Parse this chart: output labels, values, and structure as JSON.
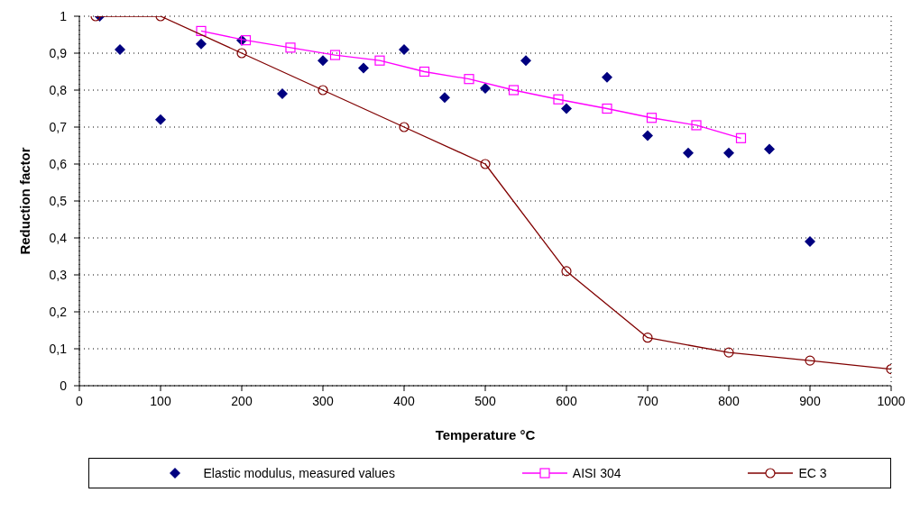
{
  "chart_data": {
    "type": "line",
    "xlabel": "Temperature °C",
    "ylabel": "Reduction factor",
    "xlim": [
      0,
      1000
    ],
    "xticks": [
      0,
      100,
      200,
      300,
      400,
      500,
      600,
      700,
      800,
      900,
      1000
    ],
    "ylim": [
      0,
      1
    ],
    "yticks": [
      {
        "value": 0,
        "label": "0"
      },
      {
        "value": 0.1,
        "label": "0,1"
      },
      {
        "value": 0.2,
        "label": "0,2"
      },
      {
        "value": 0.3,
        "label": "0,3"
      },
      {
        "value": 0.4,
        "label": "0,4"
      },
      {
        "value": 0.5,
        "label": "0,5"
      },
      {
        "value": 0.6,
        "label": "0,6"
      },
      {
        "value": 0.7,
        "label": "0,7"
      },
      {
        "value": 0.8,
        "label": "0,8"
      },
      {
        "value": 0.9,
        "label": "0,9"
      },
      {
        "value": 1,
        "label": "1"
      }
    ],
    "grid": true,
    "legend": "bottom",
    "series": [
      {
        "name": "Elastic modulus, measured values",
        "type": "scatter",
        "marker": "diamond",
        "color": "#000080",
        "x": [
          25,
          50,
          100,
          150,
          200,
          250,
          300,
          350,
          400,
          450,
          500,
          550,
          600,
          650,
          700,
          750,
          800,
          850,
          900
        ],
        "values": [
          1.0,
          0.91,
          0.72,
          0.925,
          0.935,
          0.79,
          0.88,
          0.86,
          0.91,
          0.78,
          0.805,
          0.88,
          0.75,
          0.835,
          0.677,
          0.63,
          0.63,
          0.64,
          0.39
        ]
      },
      {
        "name": "AISI 304",
        "type": "line",
        "marker": "square",
        "color": "#ff00ff",
        "x": [
          150,
          205,
          260,
          315,
          370,
          425,
          480,
          535,
          590,
          650,
          705,
          760,
          815
        ],
        "values": [
          0.96,
          0.935,
          0.915,
          0.895,
          0.88,
          0.85,
          0.83,
          0.8,
          0.775,
          0.75,
          0.725,
          0.705,
          0.67
        ]
      },
      {
        "name": "EC 3",
        "type": "line",
        "marker": "circle",
        "color": "#800000",
        "x": [
          20,
          100,
          200,
          300,
          400,
          500,
          600,
          700,
          800,
          900,
          1000
        ],
        "values": [
          1,
          1,
          0.9,
          0.8,
          0.7,
          0.6,
          0.31,
          0.13,
          0.09,
          0.068,
          0.045
        ]
      }
    ]
  }
}
